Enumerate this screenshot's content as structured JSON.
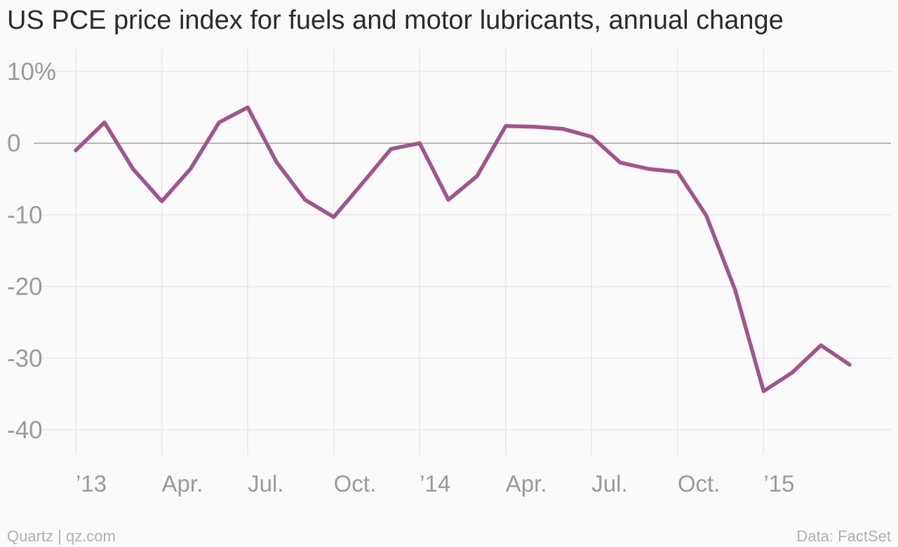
{
  "title": "US PCE price index for fuels and motor lubricants, annual change",
  "source_left": "Quartz | qz.com",
  "source_right": "Data: FactSet",
  "colors": {
    "line": "#a1558a",
    "grid": "#e8e8e8",
    "zero": "#a0a0a0",
    "tick": "#9a9a9a"
  },
  "chart_data": {
    "type": "line",
    "title": "US PCE price index for fuels and motor lubricants, annual change",
    "xlabel": "",
    "ylabel": "",
    "ylim": [
      -43,
      11
    ],
    "grid": true,
    "y_ticks": [
      {
        "value": 10,
        "label": "10%"
      },
      {
        "value": 0,
        "label": "0"
      },
      {
        "value": -10,
        "label": "-10"
      },
      {
        "value": -20,
        "label": "-20"
      },
      {
        "value": -30,
        "label": "-30"
      },
      {
        "value": -40,
        "label": "-40"
      }
    ],
    "x_ticks": [
      {
        "value": "2013-01",
        "label": "’13"
      },
      {
        "value": "2013-04",
        "label": "Apr."
      },
      {
        "value": "2013-07",
        "label": "Jul."
      },
      {
        "value": "2013-10",
        "label": "Oct."
      },
      {
        "value": "2014-01",
        "label": "’14"
      },
      {
        "value": "2014-04",
        "label": "Apr."
      },
      {
        "value": "2014-07",
        "label": "Jul."
      },
      {
        "value": "2014-10",
        "label": "Oct."
      },
      {
        "value": "2015-01",
        "label": "’15"
      }
    ],
    "x": [
      "2013-01",
      "2013-02",
      "2013-03",
      "2013-04",
      "2013-05",
      "2013-06",
      "2013-07",
      "2013-08",
      "2013-09",
      "2013-10",
      "2013-11",
      "2013-12",
      "2014-01",
      "2014-02",
      "2014-03",
      "2014-04",
      "2014-05",
      "2014-06",
      "2014-07",
      "2014-08",
      "2014-09",
      "2014-10",
      "2014-11",
      "2014-12",
      "2015-01",
      "2015-02",
      "2015-03",
      "2015-04"
    ],
    "series": [
      {
        "values": [
          -1.0,
          2.9,
          -3.6,
          -8.1,
          -3.6,
          2.9,
          5.0,
          -2.6,
          -7.9,
          -10.3,
          -5.6,
          -0.8,
          0.0,
          -7.9,
          -4.6,
          2.4,
          2.3,
          2.0,
          0.9,
          -2.7,
          -3.6,
          -4.0,
          -10.1,
          -20.4,
          -34.6,
          -32.0,
          -28.2,
          -30.9
        ]
      }
    ]
  }
}
